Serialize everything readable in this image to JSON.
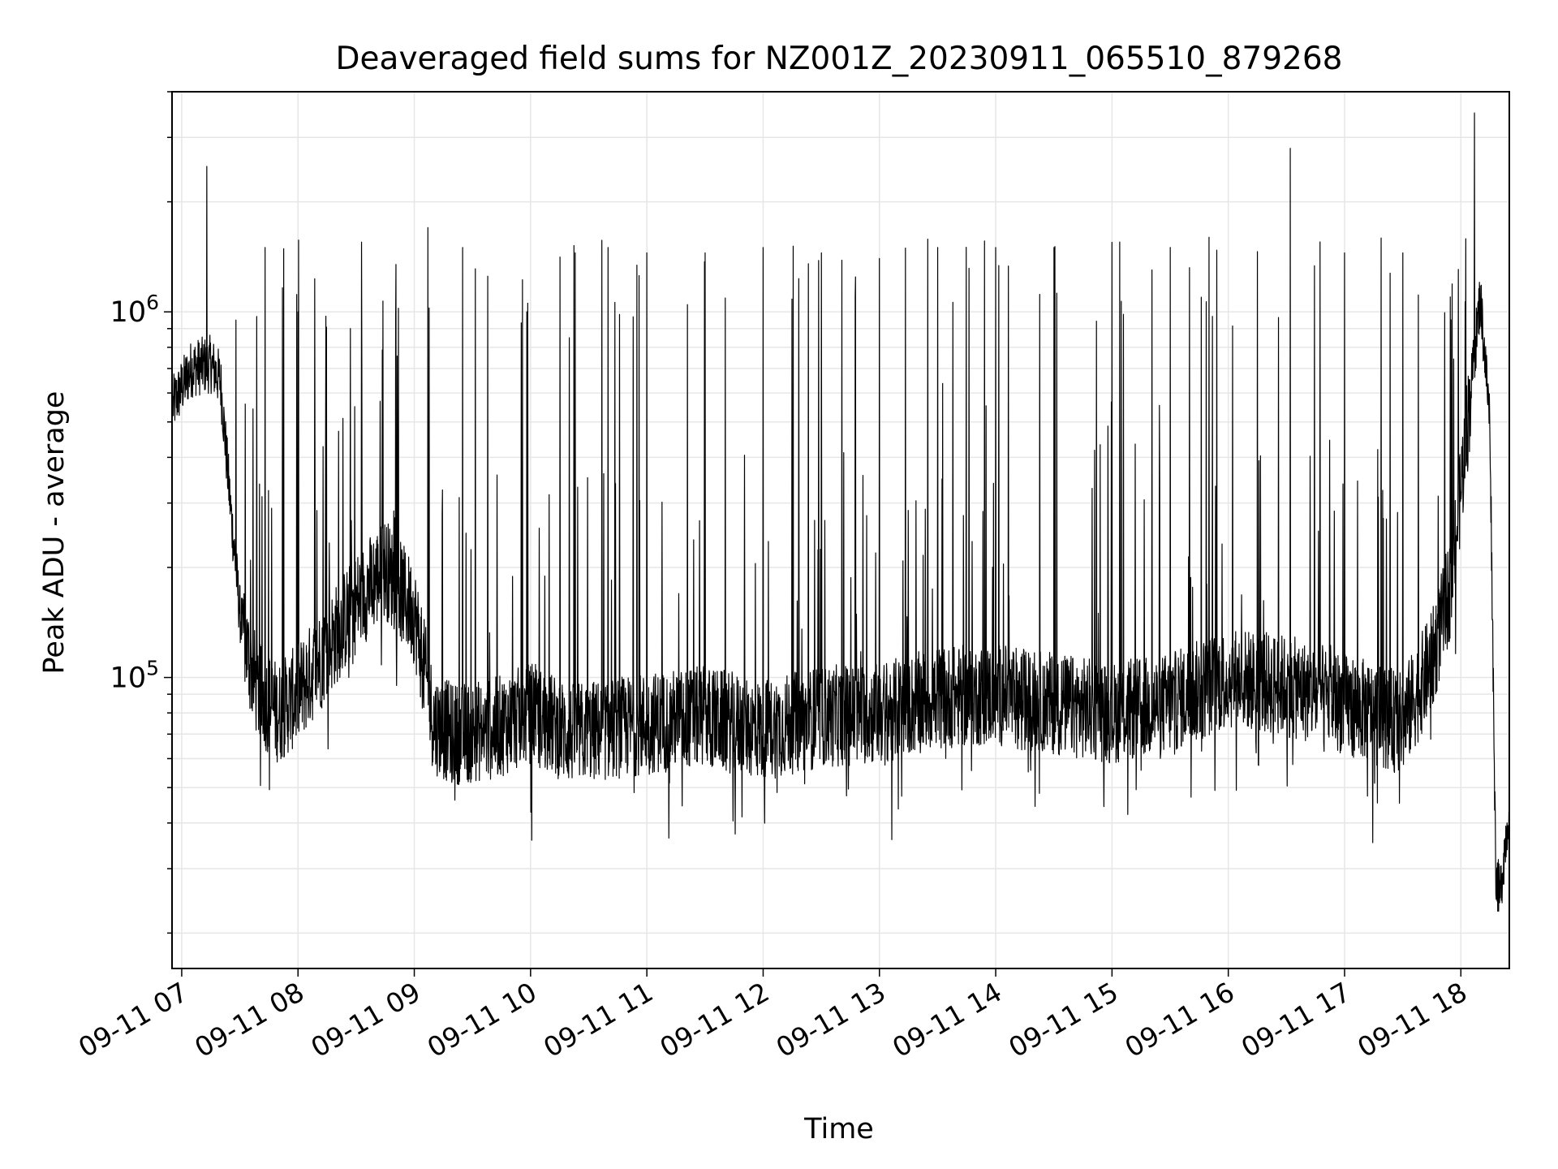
{
  "chart_data": {
    "type": "line",
    "title": "Deaveraged field sums for NZ001Z_20230911_065510_879268",
    "xlabel": "Time",
    "ylabel": "Peak ADU - average",
    "x_scale": "time",
    "y_scale": "log",
    "xlim": [
      "2023-09-11 06:55",
      "2023-09-11 18:25"
    ],
    "ylim": [
      16000,
      4000000
    ],
    "x_ticks": [
      {
        "value": "2023-09-11 07:00",
        "label": "09-11 07"
      },
      {
        "value": "2023-09-11 08:00",
        "label": "09-11 08"
      },
      {
        "value": "2023-09-11 09:00",
        "label": "09-11 09"
      },
      {
        "value": "2023-09-11 10:00",
        "label": "09-11 10"
      },
      {
        "value": "2023-09-11 11:00",
        "label": "09-11 11"
      },
      {
        "value": "2023-09-11 12:00",
        "label": "09-11 12"
      },
      {
        "value": "2023-09-11 13:00",
        "label": "09-11 13"
      },
      {
        "value": "2023-09-11 14:00",
        "label": "09-11 14"
      },
      {
        "value": "2023-09-11 15:00",
        "label": "09-11 15"
      },
      {
        "value": "2023-09-11 16:00",
        "label": "09-11 16"
      },
      {
        "value": "2023-09-11 17:00",
        "label": "09-11 17"
      },
      {
        "value": "2023-09-11 18:00",
        "label": "09-11 18"
      }
    ],
    "y_ticks": [
      {
        "value": 100000,
        "base": "10",
        "exp": "5"
      },
      {
        "value": 1000000,
        "base": "10",
        "exp": "6"
      }
    ],
    "grid": true,
    "line_color": "#000000",
    "grid_color": "#e6e6e6",
    "series": [
      {
        "name": "",
        "x": [
          "2023-09-11 06:55",
          "2023-09-11 07:05",
          "2023-09-11 07:15",
          "2023-09-11 07:20",
          "2023-09-11 07:25",
          "2023-09-11 07:30",
          "2023-09-11 07:35",
          "2023-09-11 07:40",
          "2023-09-11 07:50",
          "2023-09-11 08:00",
          "2023-09-11 08:15",
          "2023-09-11 08:30",
          "2023-09-11 08:45",
          "2023-09-11 09:00",
          "2023-09-11 09:10",
          "2023-09-11 09:20",
          "2023-09-11 09:40",
          "2023-09-11 10:00",
          "2023-09-11 10:20",
          "2023-09-11 10:40",
          "2023-09-11 11:00",
          "2023-09-11 11:30",
          "2023-09-11 12:00",
          "2023-09-11 12:30",
          "2023-09-11 13:00",
          "2023-09-11 13:30",
          "2023-09-11 14:00",
          "2023-09-11 14:30",
          "2023-09-11 15:00",
          "2023-09-11 15:30",
          "2023-09-11 16:00",
          "2023-09-11 16:30",
          "2023-09-11 17:00",
          "2023-09-11 17:30",
          "2023-09-11 17:45",
          "2023-09-11 17:55",
          "2023-09-11 18:05",
          "2023-09-11 18:10",
          "2023-09-11 18:15",
          "2023-09-11 18:18",
          "2023-09-11 18:20",
          "2023-09-11 18:25"
        ],
        "y": [
          550000,
          700000,
          720000,
          650000,
          300000,
          150000,
          110000,
          90000,
          80000,
          90000,
          120000,
          160000,
          200000,
          150000,
          75000,
          70000,
          72000,
          80000,
          70000,
          72000,
          75000,
          78000,
          72000,
          78000,
          80000,
          88000,
          90000,
          85000,
          80000,
          85000,
          100000,
          95000,
          85000,
          75000,
          110000,
          180000,
          600000,
          1100000,
          500000,
          30000,
          25000,
          45000
        ]
      }
    ],
    "spikes_min": [
      {
        "x": "2023-09-11 07:13",
        "y": 2500000
      },
      {
        "x": "2023-09-11 07:28",
        "y": 950000
      },
      {
        "x": "2023-09-11 07:43",
        "y": 1500000
      },
      {
        "x": "2023-09-11 08:00",
        "y": 1000000
      },
      {
        "x": "2023-09-11 08:27",
        "y": 900000
      },
      {
        "x": "2023-09-11 09:07",
        "y": 1700000
      },
      {
        "x": "2023-09-11 09:25",
        "y": 1500000
      },
      {
        "x": "2023-09-11 09:58",
        "y": 1000000
      },
      {
        "x": "2023-09-11 10:20",
        "y": 850000
      },
      {
        "x": "2023-09-11 10:23",
        "y": 1450000
      },
      {
        "x": "2023-09-11 10:40",
        "y": 1500000
      },
      {
        "x": "2023-09-11 11:00",
        "y": 1450000
      },
      {
        "x": "2023-09-11 11:30",
        "y": 1450000
      },
      {
        "x": "2023-09-11 12:00",
        "y": 1500000
      },
      {
        "x": "2023-09-11 12:30",
        "y": 1450000
      },
      {
        "x": "2023-09-11 13:00",
        "y": 1400000
      },
      {
        "x": "2023-09-11 13:30",
        "y": 1500000
      },
      {
        "x": "2023-09-11 14:00",
        "y": 1500000
      },
      {
        "x": "2023-09-11 14:30",
        "y": 1500000
      },
      {
        "x": "2023-09-11 15:00",
        "y": 1550000
      },
      {
        "x": "2023-09-11 15:30",
        "y": 1500000
      },
      {
        "x": "2023-09-11 15:50",
        "y": 1600000
      },
      {
        "x": "2023-09-11 16:32",
        "y": 2800000
      },
      {
        "x": "2023-09-11 17:00",
        "y": 1450000
      },
      {
        "x": "2023-09-11 17:30",
        "y": 1450000
      },
      {
        "x": "2023-09-11 18:07",
        "y": 3500000
      }
    ]
  }
}
